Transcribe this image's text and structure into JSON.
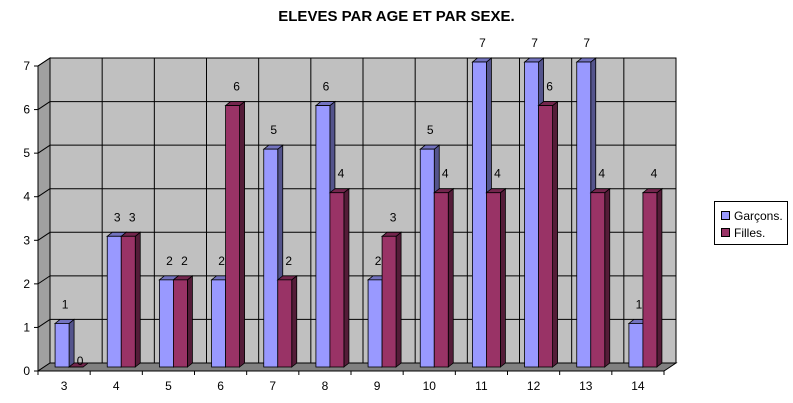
{
  "chart_data": {
    "type": "bar",
    "title": "ELEVES PAR AGE ET PAR SEXE.",
    "xlabel": "",
    "ylabel": "",
    "categories": [
      "3",
      "4",
      "5",
      "6",
      "7",
      "8",
      "9",
      "10",
      "11",
      "12",
      "13",
      "14"
    ],
    "series": [
      {
        "name": "Garçons.",
        "values": [
          1,
          3,
          2,
          2,
          5,
          6,
          2,
          5,
          7,
          7,
          7,
          1
        ],
        "color": "#9999ff"
      },
      {
        "name": "Filles.",
        "values": [
          0,
          3,
          2,
          6,
          2,
          4,
          3,
          4,
          4,
          6,
          4,
          4
        ],
        "color": "#993366"
      }
    ],
    "ylim": [
      0,
      7
    ],
    "yticks": [
      "0",
      "1",
      "2",
      "3",
      "4",
      "5",
      "6",
      "7"
    ],
    "grid": true,
    "data_labels": true,
    "legend_position": "right",
    "style": "3d-clustered-column",
    "wall_color": "#c0c0c0"
  }
}
